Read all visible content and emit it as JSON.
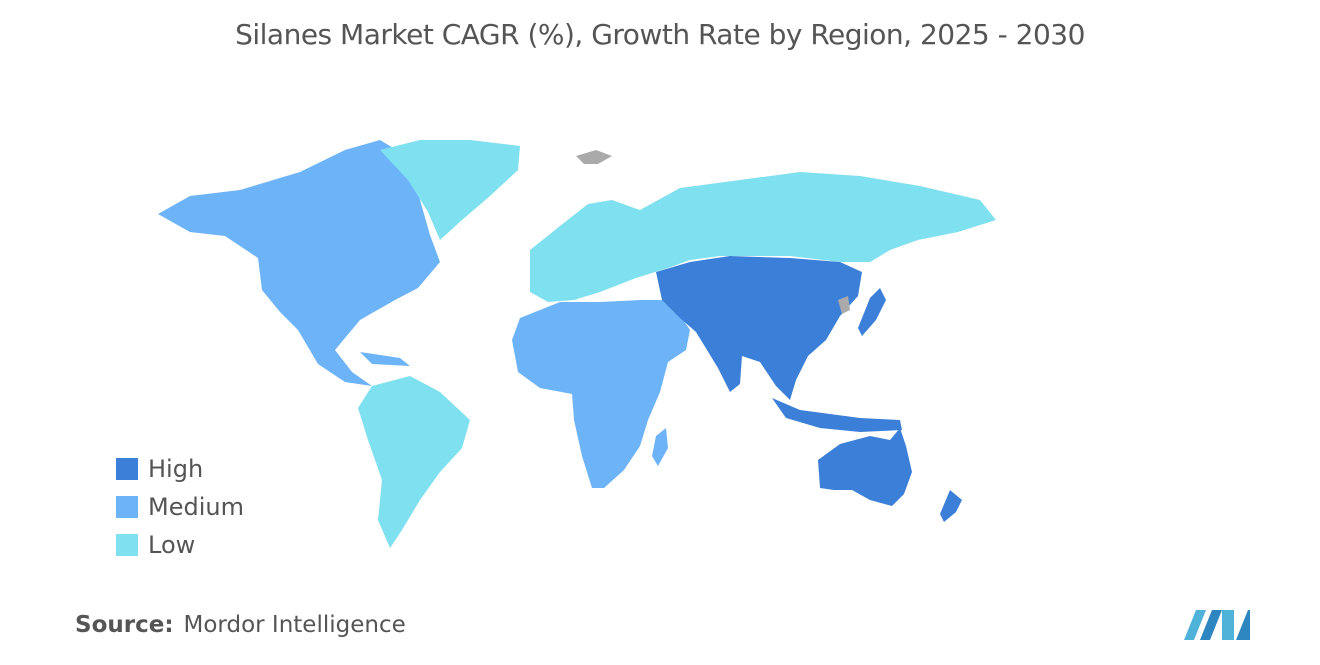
{
  "title": "Silanes Market CAGR (%), Growth Rate by Region, 2025 - 2030",
  "colors": {
    "high": "#3b7fd8",
    "medium": "#6db3f7",
    "low": "#7fe0ef",
    "no_data": "#aaaaaa",
    "logo": "#4fb3d9"
  },
  "legend": [
    {
      "label": "High",
      "color": "#3b7fd8"
    },
    {
      "label": "Medium",
      "color": "#6db3f7"
    },
    {
      "label": "Low",
      "color": "#7fe0ef"
    }
  ],
  "regions": [
    {
      "name": "North America",
      "level": "Medium"
    },
    {
      "name": "South America",
      "level": "Low"
    },
    {
      "name": "Europe",
      "level": "Low"
    },
    {
      "name": "Middle East and Africa",
      "level": "Medium"
    },
    {
      "name": "Asia-Pacific",
      "level": "High"
    }
  ],
  "source": {
    "key": "Source:",
    "value": "Mordor Intelligence"
  }
}
